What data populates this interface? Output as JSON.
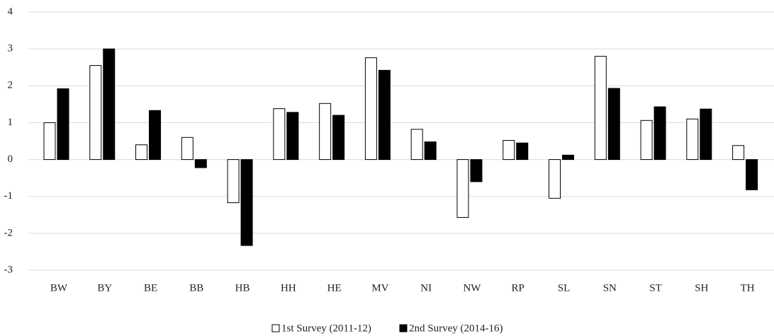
{
  "chart_data": {
    "type": "bar",
    "categories": [
      "BW",
      "BY",
      "BE",
      "BB",
      "HB",
      "HH",
      "HE",
      "MV",
      "NI",
      "NW",
      "RP",
      "SL",
      "SN",
      "ST",
      "SH",
      "TH"
    ],
    "series": [
      {
        "name": "1st Survey (2011-12)",
        "color": "#ffffff",
        "values": [
          1.0,
          2.55,
          0.4,
          0.6,
          -1.17,
          1.38,
          1.52,
          2.76,
          0.82,
          -1.57,
          0.52,
          -1.05,
          2.8,
          1.06,
          1.1,
          0.38
        ]
      },
      {
        "name": "2nd Survey (2014-16)",
        "color": "#000000",
        "values": [
          1.92,
          3.0,
          1.33,
          -0.22,
          -2.33,
          1.28,
          1.2,
          2.42,
          0.48,
          -0.6,
          0.45,
          0.12,
          1.93,
          1.43,
          1.37,
          -0.82
        ]
      }
    ],
    "ylim": [
      -3,
      4
    ],
    "yticks": [
      -3,
      -2,
      -1,
      0,
      1,
      2,
      3,
      4
    ],
    "grid": true
  }
}
